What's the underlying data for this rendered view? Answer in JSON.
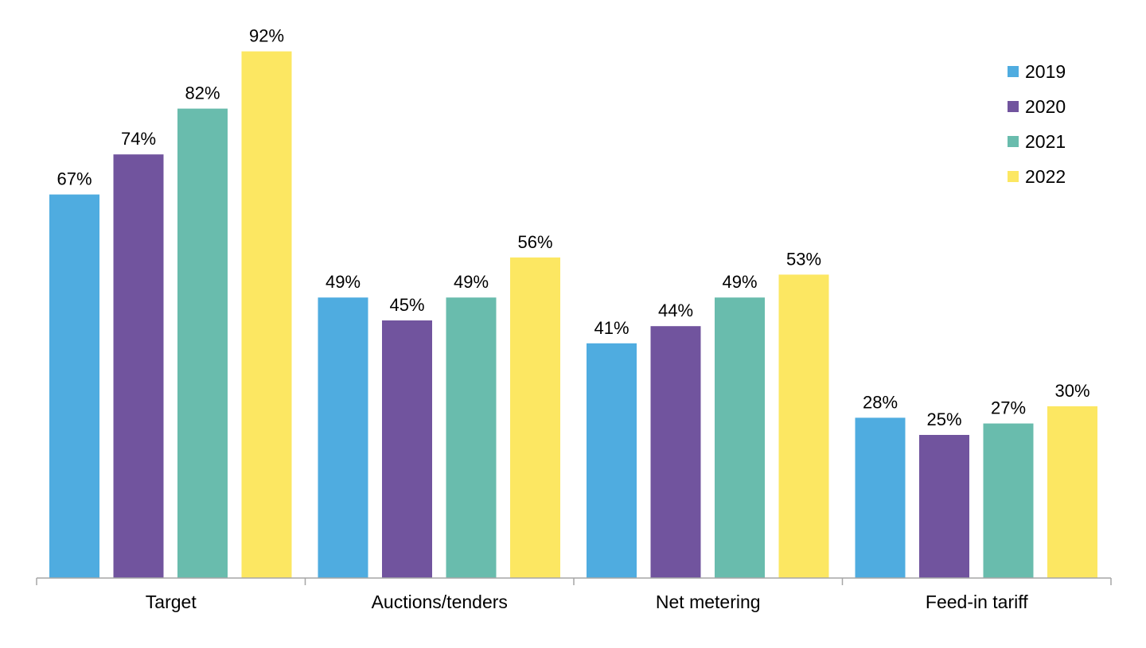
{
  "chart_data": {
    "type": "bar",
    "categories": [
      "Target",
      "Auctions/tenders",
      "Net metering",
      "Feed-in tariff"
    ],
    "series": [
      {
        "name": "2019",
        "values": [
          67,
          49,
          41,
          28
        ],
        "color": "#4FACE0"
      },
      {
        "name": "2020",
        "values": [
          74,
          45,
          44,
          25
        ],
        "color": "#71549E"
      },
      {
        "name": "2021",
        "values": [
          82,
          49,
          49,
          27
        ],
        "color": "#69BCAD"
      },
      {
        "name": "2022",
        "values": [
          92,
          56,
          53,
          30
        ],
        "color": "#FCE762"
      }
    ],
    "value_suffix": "%",
    "ylim": [
      0,
      100
    ],
    "grid": false,
    "legend_position": "top-right",
    "title": "",
    "xlabel": "",
    "ylabel": ""
  }
}
